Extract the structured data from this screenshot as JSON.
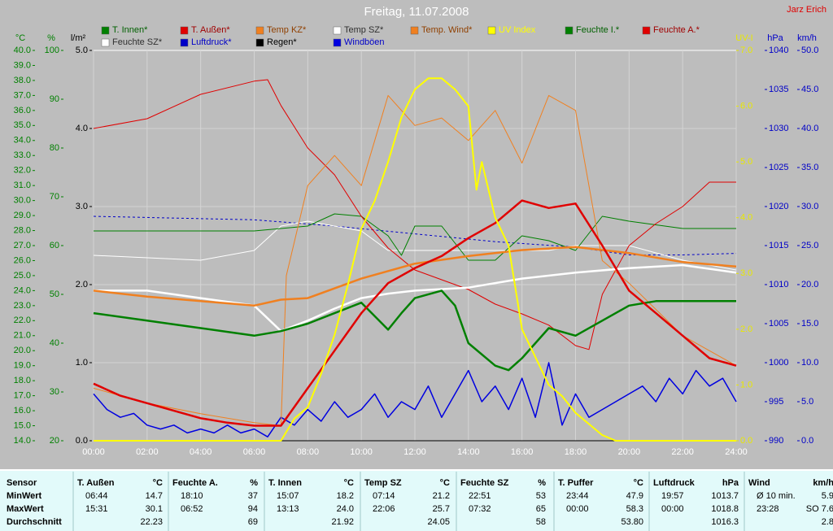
{
  "chart_data": {
    "type": "line",
    "title": "Freitag, 11.07.2008",
    "author": "Jarz Erich",
    "xlim": [
      0,
      24
    ],
    "xticks": [
      {
        "value": 0,
        "label": "00:00"
      },
      {
        "value": 2,
        "label": "02:00"
      },
      {
        "value": 4,
        "label": "04:00"
      },
      {
        "value": 6,
        "label": "06:00"
      },
      {
        "value": 8,
        "label": "08:00"
      },
      {
        "value": 10,
        "label": "10:00"
      },
      {
        "value": 12,
        "label": "12:00"
      },
      {
        "value": 14,
        "label": "14:00"
      },
      {
        "value": 16,
        "label": "16:00"
      },
      {
        "value": 18,
        "label": "18:00"
      },
      {
        "value": 20,
        "label": "20:00"
      },
      {
        "value": 22,
        "label": "22:00"
      },
      {
        "value": 24,
        "label": "24:00"
      }
    ],
    "grid": true,
    "grid_axis": 2,
    "axes": [
      {
        "label": "°C",
        "color": "#008000",
        "lim": [
          14,
          40
        ],
        "ticks": [
          {
            "value": 14,
            "label": "14.0"
          },
          {
            "value": 15,
            "label": "15.0"
          },
          {
            "value": 16,
            "label": "16.0"
          },
          {
            "value": 17,
            "label": "17.0"
          },
          {
            "value": 18,
            "label": "18.0"
          },
          {
            "value": 19,
            "label": "19.0"
          },
          {
            "value": 20,
            "label": "20.0"
          },
          {
            "value": 21,
            "label": "21.0"
          },
          {
            "value": 22,
            "label": "22.0"
          },
          {
            "value": 23,
            "label": "23.0"
          },
          {
            "value": 24,
            "label": "24.0"
          },
          {
            "value": 25,
            "label": "25.0"
          },
          {
            "value": 26,
            "label": "26.0"
          },
          {
            "value": 27,
            "label": "27.0"
          },
          {
            "value": 28,
            "label": "28.0"
          },
          {
            "value": 29,
            "label": "29.0"
          },
          {
            "value": 30,
            "label": "30.0"
          },
          {
            "value": 31,
            "label": "31.0"
          },
          {
            "value": 32,
            "label": "32.0"
          },
          {
            "value": 33,
            "label": "33.0"
          },
          {
            "value": 34,
            "label": "34.0"
          },
          {
            "value": 35,
            "label": "35.0"
          },
          {
            "value": 36,
            "label": "36.0"
          },
          {
            "value": 37,
            "label": "37.0"
          },
          {
            "value": 38,
            "label": "38.0"
          },
          {
            "value": 39,
            "label": "39.0"
          },
          {
            "value": 40,
            "label": "40.0"
          }
        ]
      },
      {
        "label": "%",
        "color": "#008000",
        "lim": [
          20,
          100
        ],
        "ticks": [
          20,
          30,
          40,
          50,
          60,
          70,
          80,
          90,
          100
        ]
      },
      {
        "label": "l/m²",
        "color": "#000000",
        "lim": [
          0,
          5
        ],
        "ticks": [
          {
            "value": 0,
            "label": "0.0"
          },
          {
            "value": 1,
            "label": "1.0"
          },
          {
            "value": 2,
            "label": "2.0"
          },
          {
            "value": 3,
            "label": "3.0"
          },
          {
            "value": 4,
            "label": "4.0"
          },
          {
            "value": 5,
            "label": "5.0"
          }
        ]
      },
      {
        "label": "UV-I",
        "color": "#e8e800",
        "lim": [
          0,
          7
        ],
        "ticks": [
          {
            "value": 0,
            "label": "0.0"
          },
          {
            "value": 1,
            "label": "1.0"
          },
          {
            "value": 2,
            "label": "2.0"
          },
          {
            "value": 3,
            "label": "3.0"
          },
          {
            "value": 4,
            "label": "4.0"
          },
          {
            "value": 5,
            "label": "5.0"
          },
          {
            "value": 6,
            "label": "6.0"
          },
          {
            "value": 7,
            "label": "7.0"
          }
        ]
      },
      {
        "label": "hPa",
        "color": "#0000c8",
        "lim": [
          990,
          1040
        ],
        "ticks": [
          990,
          995,
          1000,
          1005,
          1010,
          1015,
          1020,
          1025,
          1030,
          1035,
          1040
        ]
      },
      {
        "label": "km/h",
        "color": "#0000c8",
        "lim": [
          0,
          50
        ],
        "ticks": [
          {
            "value": 0,
            "label": "0.0"
          },
          {
            "value": 5,
            "label": "5.0"
          },
          {
            "value": 10,
            "label": "10.0"
          },
          {
            "value": 15,
            "label": "15.0"
          },
          {
            "value": 20,
            "label": "20.0"
          },
          {
            "value": 25,
            "label": "25.0"
          },
          {
            "value": 30,
            "label": "30.0"
          },
          {
            "value": 35,
            "label": "35.0"
          },
          {
            "value": 40,
            "label": "40.0"
          },
          {
            "value": 45,
            "label": "45.0"
          },
          {
            "value": 50,
            "label": "50.0"
          }
        ]
      }
    ],
    "series": [
      {
        "name": "T. Innen*",
        "color": "#008000",
        "text_color": "#006000",
        "axis": 0,
        "width": 2.5,
        "x": [
          0,
          2,
          4,
          6,
          7,
          8,
          9,
          10,
          11,
          11.5,
          12,
          13,
          13.5,
          14,
          15,
          15.5,
          16,
          17,
          18,
          19,
          20,
          21,
          22,
          24
        ],
        "values": [
          22.5,
          22,
          21.5,
          21,
          21.3,
          21.8,
          22.5,
          23.2,
          21.4,
          22.5,
          23.5,
          24,
          23,
          20.5,
          19,
          18.7,
          19.5,
          21.5,
          21,
          22,
          23,
          23.3,
          23.3,
          23.3
        ]
      },
      {
        "name": "T. Außen*",
        "color": "#e00000",
        "text_color": "#a00000",
        "axis": 0,
        "width": 2.5,
        "x": [
          0,
          1,
          2,
          3,
          4,
          5,
          6,
          7,
          8,
          9,
          10,
          11,
          12,
          13,
          14,
          15,
          16,
          17,
          18,
          19,
          20,
          21,
          22,
          23,
          24
        ],
        "values": [
          17.8,
          17,
          16.5,
          16,
          15.5,
          15.2,
          15,
          15,
          17.5,
          20,
          22.5,
          24.5,
          25.5,
          26.3,
          27.5,
          28.5,
          30,
          29.5,
          29.8,
          27,
          24,
          22.5,
          21,
          19.5,
          19
        ]
      },
      {
        "name": "Temp KZ*",
        "color": "#f08020",
        "text_color": "#904000",
        "axis": 0,
        "width": 1,
        "x": [
          0,
          2,
          4,
          6,
          7,
          7.2,
          8,
          9,
          10,
          11,
          12,
          13,
          14,
          15,
          16,
          17,
          18,
          19,
          20,
          22,
          24
        ],
        "values": [
          17.5,
          16.5,
          15.8,
          15.2,
          15,
          25,
          31,
          33,
          31,
          37,
          35,
          35.5,
          34,
          36,
          32.5,
          37,
          36,
          26,
          24.5,
          21,
          19
        ]
      },
      {
        "name": "Temp SZ*",
        "color": "#ffffff",
        "text_color": "#303030",
        "axis": 0,
        "width": 2.5,
        "x": [
          0,
          2,
          4,
          6,
          7,
          8,
          9,
          10,
          11,
          12,
          14,
          16,
          18,
          20,
          22,
          24
        ],
        "values": [
          24,
          24,
          23.5,
          23,
          21.3,
          22,
          22.8,
          23.5,
          23.8,
          24,
          24.2,
          24.8,
          25.2,
          25.5,
          25.7,
          25.2
        ]
      },
      {
        "name": "Temp. Wind*",
        "color": "#f08020",
        "text_color": "#904000",
        "axis": 0,
        "width": 2.5,
        "x": [
          0,
          2,
          4,
          6,
          7,
          8,
          10,
          12,
          14,
          16,
          18,
          20,
          22,
          24
        ],
        "values": [
          24,
          23.6,
          23.3,
          23,
          23.4,
          23.5,
          24.8,
          25.8,
          26.3,
          26.7,
          26.9,
          26.5,
          25.9,
          25.6
        ]
      },
      {
        "name": "UV Index",
        "color": "#ffff00",
        "text_color": "#ffff00",
        "axis": 3,
        "width": 2,
        "x": [
          0,
          7,
          7.5,
          8,
          8.5,
          9,
          9.5,
          10,
          10.5,
          11,
          11.5,
          12,
          12.5,
          13,
          13.5,
          14,
          14.3,
          14.5,
          15,
          15.5,
          16,
          16.5,
          17,
          17.5,
          18,
          19,
          19.5,
          24
        ],
        "values": [
          0,
          0,
          0.4,
          0.6,
          1.2,
          1.9,
          2.8,
          3.8,
          4.3,
          5,
          5.8,
          6.3,
          6.5,
          6.5,
          6.3,
          6,
          4.5,
          5,
          4,
          3.5,
          2,
          1.5,
          1,
          0.8,
          0.5,
          0.1,
          0,
          0
        ]
      },
      {
        "name": "Feuchte I.*",
        "color": "#008000",
        "text_color": "#006000",
        "axis": 1,
        "width": 1,
        "x": [
          0,
          6,
          7,
          8,
          9,
          10,
          11,
          11.5,
          12,
          13,
          14,
          15,
          16,
          17,
          18,
          19,
          20,
          22,
          24
        ],
        "values": [
          63,
          63,
          63.5,
          64,
          66.5,
          66,
          62,
          58,
          64,
          64,
          57,
          57,
          62,
          61,
          59,
          66,
          65,
          63.5,
          63.5
        ]
      },
      {
        "name": "Feuchte A.*",
        "color": "#e00000",
        "text_color": "#a00000",
        "axis": 1,
        "width": 1,
        "x": [
          0,
          2,
          4,
          6,
          6.5,
          7,
          8,
          9,
          10,
          11,
          12,
          13,
          14,
          15,
          16,
          17,
          18,
          18.5,
          19,
          20,
          21,
          22,
          23,
          24
        ],
        "values": [
          84,
          86,
          91,
          93.7,
          94,
          88.7,
          80,
          74.5,
          66,
          59.5,
          55,
          53,
          51,
          48,
          46,
          43.7,
          39.5,
          38.7,
          50,
          60,
          64.5,
          68,
          73,
          73
        ]
      },
      {
        "name": "Feuchte SZ*",
        "color": "#ffffff",
        "text_color": "#303030",
        "axis": 1,
        "width": 1,
        "x": [
          0,
          4,
          6,
          7,
          8,
          10,
          11,
          14,
          17,
          18,
          20,
          22,
          24
        ],
        "values": [
          58,
          57,
          59,
          64,
          65,
          63,
          59,
          59,
          59,
          60,
          60,
          57,
          55
        ]
      },
      {
        "name": "Luftdruck*",
        "color": "#0000c8",
        "text_color": "#0000c8",
        "axis": 4,
        "width": 1,
        "dashed": true,
        "x": [
          0,
          6,
          9,
          12,
          15,
          18,
          20,
          22,
          24
        ],
        "values": [
          1018.75,
          1018.3,
          1017.5,
          1016.5,
          1015.5,
          1014.8,
          1013.8,
          1013.8,
          1014
        ]
      },
      {
        "name": "Regen*",
        "color": "#000000",
        "text_color": "#000000",
        "axis": 2,
        "width": 1,
        "x": [
          0,
          24
        ],
        "values": [
          0,
          0
        ]
      },
      {
        "name": "Windböen",
        "color": "#0000e0",
        "text_color": "#0000c8",
        "axis": 5,
        "width": 1.5,
        "x": [
          0,
          0.5,
          1,
          1.5,
          2,
          2.5,
          3,
          3.5,
          4,
          4.5,
          5,
          5.5,
          6,
          6.5,
          7,
          7.5,
          8,
          8.5,
          9,
          9.5,
          10,
          10.5,
          11,
          11.5,
          12,
          12.5,
          13,
          13.5,
          14,
          14.5,
          15,
          15.5,
          16,
          16.5,
          17,
          17.5,
          18,
          18.5,
          19,
          19.5,
          20,
          20.5,
          21,
          21.5,
          22,
          22.5,
          23,
          23.5,
          24
        ],
        "values": [
          6,
          4,
          3,
          3.5,
          2,
          1.5,
          2,
          1,
          1.5,
          1,
          2,
          1,
          1.5,
          0.5,
          3,
          2,
          4,
          2.5,
          5,
          3,
          4,
          6,
          3,
          5,
          4,
          7,
          3,
          6,
          9,
          5,
          7,
          4,
          8,
          3,
          10,
          2,
          6,
          3,
          4,
          5,
          6,
          7,
          5,
          8,
          6,
          9,
          7,
          8,
          5
        ]
      }
    ]
  },
  "table": {
    "row_labels": [
      "Sensor",
      "MinWert",
      "MaxWert",
      "Durchschnitt"
    ],
    "groups": [
      {
        "name": "T. Außen",
        "unit": "°C",
        "min_time": "06:44",
        "min": "14.7",
        "max_time": "15:31",
        "max": "30.1",
        "avg": "22.23"
      },
      {
        "name": "Feuchte A.",
        "unit": "%",
        "min_time": "18:10",
        "min": "37",
        "max_time": "06:52",
        "max": "94",
        "avg": "69"
      },
      {
        "name": "T. Innen",
        "unit": "°C",
        "min_time": "15:07",
        "min": "18.2",
        "max_time": "13:13",
        "max": "24.0",
        "avg": "21.92"
      },
      {
        "name": "Temp SZ",
        "unit": "°C",
        "min_time": "07:14",
        "min": "21.2",
        "max_time": "22:06",
        "max": "25.7",
        "avg": "24.05"
      },
      {
        "name": "Feuchte SZ",
        "unit": "%",
        "min_time": "22:51",
        "min": "53",
        "max_time": "07:32",
        "max": "65",
        "avg": "58"
      },
      {
        "name": "T. Puffer",
        "unit": "°C",
        "min_time": "23:44",
        "min": "47.9",
        "max_time": "00:00",
        "max": "58.3",
        "avg": "53.80"
      },
      {
        "name": "Luftdruck",
        "unit": "hPa",
        "min_time": "19:57",
        "min": "1013.7",
        "max_time": "00:00",
        "max": "1018.8",
        "avg": "1016.3"
      },
      {
        "name": "Wind",
        "unit": "km/h",
        "min_time": "Ø 10 min.",
        "min": "5.9",
        "max_time": "23:28",
        "max": "SO 7.6",
        "avg": "2.8"
      }
    ]
  }
}
